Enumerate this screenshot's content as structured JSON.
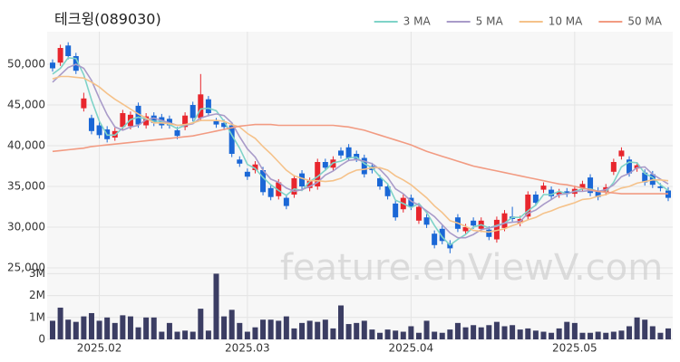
{
  "watermark": "feature.enViewV.com",
  "chart_data": [
    {
      "type": "candlestick",
      "title": "테크윙(089030)",
      "up_color": "#e8262d",
      "down_color": "#1a67d6",
      "grid": true,
      "legend": "top-right",
      "ylim": [
        25000,
        54000
      ],
      "yticks": [
        {
          "value": 25000,
          "label": "25,000"
        },
        {
          "value": 30000,
          "label": "30,000"
        },
        {
          "value": 35000,
          "label": "35,000"
        },
        {
          "value": 40000,
          "label": "40,000"
        },
        {
          "value": 45000,
          "label": "45,000"
        },
        {
          "value": 50000,
          "label": "50,000"
        }
      ],
      "open": [
        50200,
        50200,
        52300,
        51000,
        44600,
        43400,
        42500,
        42000,
        41000,
        42300,
        42400,
        44900,
        42500,
        43700,
        43500,
        43300,
        41900,
        42300,
        45000,
        43400,
        45700,
        43000,
        42800,
        42500,
        38300,
        36800,
        37000,
        37000,
        34800,
        33800,
        33600,
        34000,
        36600,
        34800,
        35000,
        38000,
        37300,
        39400,
        39800,
        39000,
        38500,
        37500,
        36000,
        35000,
        32900,
        32200,
        33600,
        30800,
        31200,
        29200,
        29800,
        28000,
        31200,
        29500,
        30800,
        29800,
        29700,
        28500,
        29900,
        31300,
        30500,
        31300,
        34000,
        34600,
        34600,
        34000,
        34400,
        34100,
        34800,
        36100,
        34500,
        34300,
        36800,
        38700,
        38300,
        37200,
        36700,
        36500,
        35000,
        34500
      ],
      "high": [
        50600,
        52400,
        52700,
        51400,
        46500,
        43800,
        42900,
        42400,
        42200,
        44400,
        44200,
        45300,
        44000,
        44100,
        43900,
        43700,
        42300,
        44100,
        45400,
        48800,
        46100,
        43400,
        43200,
        42900,
        38700,
        37200,
        38100,
        37400,
        35200,
        35900,
        34000,
        36400,
        37000,
        36100,
        38400,
        38400,
        38700,
        39800,
        40200,
        39400,
        38900,
        37900,
        36400,
        35400,
        33300,
        34000,
        34000,
        32900,
        31600,
        29600,
        30200,
        28400,
        31600,
        30400,
        31200,
        31200,
        30100,
        31300,
        32100,
        32500,
        31400,
        34400,
        34400,
        35500,
        35000,
        34700,
        34800,
        35100,
        35700,
        36500,
        34900,
        35300,
        38400,
        39800,
        38700,
        38000,
        37100,
        36900,
        35400,
        34900
      ],
      "low": [
        49100,
        49800,
        50600,
        48800,
        44200,
        41400,
        40900,
        40400,
        40600,
        41900,
        42000,
        42200,
        42100,
        42400,
        42100,
        42100,
        40800,
        41900,
        43000,
        43000,
        43600,
        42200,
        41900,
        38600,
        37400,
        35800,
        36600,
        33900,
        33300,
        33400,
        32200,
        33600,
        34600,
        34400,
        34600,
        36900,
        36900,
        38400,
        38100,
        38000,
        36100,
        36600,
        34600,
        33400,
        30800,
        31800,
        32100,
        30400,
        29900,
        27400,
        27900,
        26800,
        29400,
        29100,
        29800,
        29400,
        28400,
        28100,
        29500,
        30600,
        30100,
        30900,
        32600,
        34200,
        33400,
        33600,
        33700,
        33700,
        34400,
        33800,
        33300,
        33900,
        36400,
        38300,
        36200,
        36800,
        35100,
        34800,
        34400,
        33200
      ],
      "close": [
        49500,
        52000,
        51000,
        49200,
        45800,
        41800,
        41300,
        40800,
        41800,
        44000,
        43800,
        42600,
        43600,
        42800,
        42500,
        42500,
        41200,
        43700,
        43400,
        46300,
        44000,
        42600,
        42300,
        39000,
        37800,
        36200,
        37700,
        34300,
        33700,
        35500,
        32600,
        36000,
        35000,
        35700,
        38000,
        37300,
        38300,
        38800,
        38500,
        38400,
        36500,
        37000,
        35000,
        33800,
        31200,
        33600,
        32500,
        32500,
        30300,
        27800,
        28300,
        27400,
        29800,
        30000,
        30200,
        30800,
        28800,
        30900,
        31700,
        31000,
        31000,
        34000,
        33000,
        35100,
        33800,
        34300,
        34100,
        34700,
        35300,
        34200,
        33700,
        34900,
        38000,
        39400,
        36600,
        37600,
        35500,
        35200,
        34800,
        33600
      ],
      "series": [
        {
          "name": "3 MA",
          "color": "#7fd3c8",
          "values": [
            48800,
            49500,
            50800,
            50700,
            48700,
            45600,
            43000,
            41300,
            41300,
            42200,
            43200,
            43500,
            43300,
            43000,
            43000,
            42600,
            42100,
            42500,
            42800,
            44500,
            44600,
            44300,
            43000,
            41300,
            39700,
            37700,
            37200,
            36100,
            35200,
            34500,
            33900,
            34700,
            34500,
            35600,
            36200,
            37000,
            37900,
            38100,
            38500,
            38600,
            37800,
            37300,
            36200,
            35300,
            33300,
            32900,
            32400,
            32900,
            31800,
            30200,
            28800,
            27800,
            28500,
            29100,
            30000,
            30300,
            29900,
            30200,
            30500,
            31200,
            31200,
            32000,
            32700,
            34000,
            34000,
            34400,
            34100,
            34400,
            34700,
            34700,
            34400,
            34300,
            35500,
            37400,
            38000,
            37900,
            36600,
            36100,
            35200,
            34500
          ]
        },
        {
          "name": "5 MA",
          "color": "#a99bc9",
          "values": [
            47800,
            48700,
            49600,
            50000,
            49500,
            48000,
            45800,
            43800,
            42300,
            41900,
            42300,
            42500,
            43200,
            43400,
            43100,
            42800,
            42500,
            42500,
            42700,
            43400,
            43700,
            43900,
            43700,
            42800,
            41100,
            39600,
            38600,
            37000,
            35900,
            35500,
            34800,
            34400,
            34600,
            35000,
            35500,
            36400,
            36900,
            37600,
            38200,
            38300,
            38100,
            37800,
            37100,
            36100,
            34700,
            34100,
            33200,
            32700,
            32000,
            31300,
            30300,
            29300,
            28700,
            28700,
            29100,
            29700,
            29900,
            30100,
            30500,
            30600,
            30700,
            31700,
            32100,
            32800,
            33400,
            34000,
            34100,
            34400,
            34400,
            34500,
            34400,
            34600,
            35200,
            36200,
            36600,
            37300,
            37400,
            36500,
            35900,
            35300
          ]
        },
        {
          "name": "10 MA",
          "color": "#f5c28a",
          "values": [
            48200,
            48500,
            48500,
            48400,
            48300,
            47800,
            47200,
            46400,
            45700,
            45100,
            44500,
            43900,
            43400,
            42800,
            42800,
            42700,
            42500,
            42600,
            42800,
            43100,
            43100,
            43100,
            43000,
            42600,
            42300,
            41500,
            40900,
            39900,
            39000,
            38000,
            37000,
            36300,
            36000,
            35700,
            35700,
            35600,
            35700,
            36000,
            36600,
            37000,
            37100,
            37300,
            37300,
            37000,
            36300,
            35800,
            35200,
            34400,
            33600,
            32600,
            31800,
            30800,
            30500,
            30100,
            29600,
            29500,
            29400,
            29600,
            29800,
            30200,
            30500,
            30900,
            31200,
            31700,
            32000,
            32400,
            32700,
            33000,
            33400,
            33500,
            33800,
            34000,
            34400,
            34800,
            35000,
            35400,
            35600,
            35800,
            35800,
            35700
          ]
        },
        {
          "name": "50 MA",
          "color": "#f29b82",
          "values": [
            39300,
            39400,
            39500,
            39600,
            39700,
            39900,
            40000,
            40100,
            40200,
            40300,
            40400,
            40500,
            40600,
            40700,
            40800,
            40900,
            41000,
            41100,
            41200,
            41400,
            41600,
            41800,
            42000,
            42200,
            42400,
            42500,
            42600,
            42600,
            42600,
            42500,
            42500,
            42500,
            42500,
            42500,
            42500,
            42500,
            42500,
            42400,
            42300,
            42100,
            41900,
            41600,
            41300,
            41000,
            40700,
            40400,
            40100,
            39700,
            39300,
            39000,
            38700,
            38400,
            38100,
            37800,
            37500,
            37300,
            37100,
            36900,
            36700,
            36500,
            36300,
            36100,
            35900,
            35700,
            35500,
            35300,
            35200,
            35000,
            34800,
            34600,
            34400,
            34300,
            34200,
            34100,
            34100,
            34100,
            34100,
            34100,
            34100,
            34100
          ]
        }
      ]
    },
    {
      "type": "bar",
      "color": "#3b3d63",
      "grid": true,
      "ylim": [
        0,
        3100000
      ],
      "yticks": [
        0,
        {
          "value": 1000000,
          "label": "1M"
        },
        {
          "value": 2000000,
          "label": "2M"
        },
        {
          "value": 3000000,
          "label": "3M"
        }
      ],
      "categories": [
        null,
        null,
        null,
        null,
        null,
        null,
        "2025.02",
        null,
        null,
        null,
        null,
        null,
        null,
        null,
        null,
        null,
        null,
        null,
        null,
        null,
        null,
        null,
        null,
        null,
        null,
        "2025.03",
        null,
        null,
        null,
        null,
        null,
        null,
        null,
        null,
        null,
        null,
        null,
        null,
        null,
        null,
        null,
        null,
        null,
        null,
        null,
        null,
        "2025.04",
        null,
        null,
        null,
        null,
        null,
        null,
        null,
        null,
        null,
        null,
        null,
        null,
        null,
        null,
        null,
        null,
        null,
        null,
        null,
        null,
        "2025.05",
        null,
        null,
        null,
        null,
        null,
        null,
        null,
        null,
        null,
        null,
        null,
        null
      ],
      "values": [
        850000,
        1450000,
        900000,
        800000,
        1050000,
        1200000,
        850000,
        1000000,
        750000,
        1100000,
        1050000,
        550000,
        1000000,
        1000000,
        350000,
        750000,
        350000,
        400000,
        350000,
        1400000,
        400000,
        3000000,
        1050000,
        1350000,
        750000,
        350000,
        550000,
        900000,
        900000,
        850000,
        1050000,
        500000,
        750000,
        850000,
        800000,
        900000,
        500000,
        1550000,
        700000,
        750000,
        850000,
        450000,
        300000,
        450000,
        400000,
        350000,
        600000,
        300000,
        850000,
        350000,
        300000,
        450000,
        750000,
        550000,
        650000,
        550000,
        650000,
        800000,
        600000,
        650000,
        450000,
        500000,
        400000,
        350000,
        300000,
        500000,
        800000,
        750000,
        300000,
        300000,
        350000,
        300000,
        350000,
        400000,
        600000,
        1000000,
        900000,
        600000,
        300000,
        500000
      ]
    }
  ]
}
